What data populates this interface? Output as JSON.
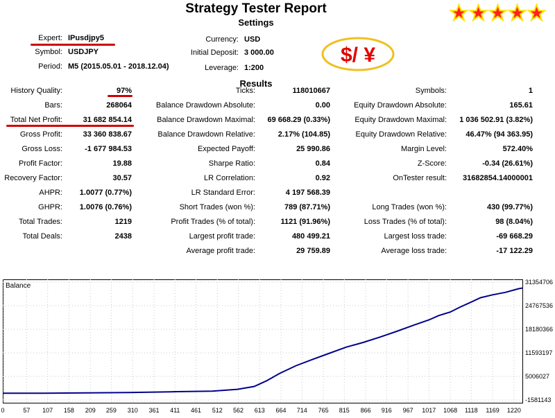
{
  "title": "Strategy Tester Report",
  "settings_title": "Settings",
  "results_title": "Results",
  "rating_stars": 5,
  "currency_logo": "$/ ¥",
  "settings": {
    "expert_label": "Expert:",
    "expert_value": "IPusdjpy5",
    "symbol_label": "Symbol:",
    "symbol_value": "USDJPY",
    "period_label": "Period:",
    "period_value": "M5 (2015.05.01 - 2018.12.04)",
    "currency_label": "Currency:",
    "currency_value": "USD",
    "deposit_label": "Initial Deposit:",
    "deposit_value": "3 000.00",
    "leverage_label": "Leverage:",
    "leverage_value": "1:200"
  },
  "results": {
    "col1": [
      {
        "label": "History Quality:",
        "value": "97%"
      },
      {
        "label": "Bars:",
        "value": "268064"
      },
      {
        "label": "Total Net Profit:",
        "value": "31 682 854.14"
      },
      {
        "label": "Gross Profit:",
        "value": "33 360 838.67"
      },
      {
        "label": "Gross Loss:",
        "value": "-1 677 984.53"
      },
      {
        "label": "Profit Factor:",
        "value": "19.88"
      },
      {
        "label": "Recovery Factor:",
        "value": "30.57"
      },
      {
        "label": "AHPR:",
        "value": "1.0077 (0.77%)"
      },
      {
        "label": "GHPR:",
        "value": "1.0076 (0.76%)"
      },
      {
        "label": "Total Trades:",
        "value": "1219"
      },
      {
        "label": "Total Deals:",
        "value": "2438"
      }
    ],
    "col2": [
      {
        "label": "Ticks:",
        "value": "118010667"
      },
      {
        "label": "Balance Drawdown Absolute:",
        "value": "0.00"
      },
      {
        "label": "Balance Drawdown Maximal:",
        "value": "69 668.29 (0.33%)"
      },
      {
        "label": "Balance Drawdown Relative:",
        "value": "2.17% (104.85)"
      },
      {
        "label": "Expected Payoff:",
        "value": "25 990.86"
      },
      {
        "label": "Sharpe Ratio:",
        "value": "0.84"
      },
      {
        "label": "LR Correlation:",
        "value": "0.92"
      },
      {
        "label": "LR Standard Error:",
        "value": "4 197 568.39"
      },
      {
        "label": "Short Trades (won %):",
        "value": "789 (87.71%)"
      },
      {
        "label": "Profit Trades (% of total):",
        "value": "1121 (91.96%)"
      },
      {
        "label": "Largest profit trade:",
        "value": "480 499.21"
      },
      {
        "label": "Average profit trade:",
        "value": "29 759.89"
      }
    ],
    "col3": [
      {
        "label": "Symbols:",
        "value": "1"
      },
      {
        "label": "Equity Drawdown Absolute:",
        "value": "165.61"
      },
      {
        "label": "Equity Drawdown Maximal:",
        "value": "1 036 502.91 (3.82%)"
      },
      {
        "label": "Equity Drawdown Relative:",
        "value": "46.47% (94 363.95)"
      },
      {
        "label": "Margin Level:",
        "value": "572.40%"
      },
      {
        "label": "Z-Score:",
        "value": "-0.34 (26.61%)"
      },
      {
        "label": "OnTester result:",
        "value": "31682854.14000001"
      },
      {
        "label": "",
        "value": ""
      },
      {
        "label": "Long Trades (won %):",
        "value": "430 (99.77%)"
      },
      {
        "label": "Loss Trades (% of total):",
        "value": "98 (8.04%)"
      },
      {
        "label": "Largest loss trade:",
        "value": "-69 668.29"
      },
      {
        "label": "Average loss trade:",
        "value": "-17 122.29"
      }
    ]
  },
  "colors": {
    "accent_red": "#d00000",
    "balance_line": "#00008b",
    "star_fill": "#ff2020",
    "star_bg": "#ffe000",
    "logo_ring": "#f0c020"
  },
  "chart_data": {
    "type": "line",
    "title": "Balance",
    "x_ticks": [
      "0",
      "57",
      "107",
      "158",
      "209",
      "259",
      "310",
      "361",
      "411",
      "461",
      "512",
      "562",
      "613",
      "664",
      "714",
      "765",
      "815",
      "866",
      "916",
      "967",
      "1017",
      "1068",
      "1118",
      "1169",
      "1220"
    ],
    "y_ticks": [
      "31354706",
      "24767536",
      "18180366",
      "11593197",
      "5006027",
      "-1581143"
    ],
    "xlim": [
      0,
      1240
    ],
    "ylim": [
      -1581143,
      31354706
    ],
    "series": [
      {
        "values_x": [
          0,
          100,
          200,
          300,
          400,
          500,
          560,
          600,
          630,
          660,
          700,
          740,
          780,
          820,
          860,
          900,
          940,
          980,
          1017,
          1040,
          1068,
          1090,
          1118,
          1140,
          1169,
          1200,
          1230,
          1240
        ],
        "values_y": [
          300000,
          300000,
          400000,
          500000,
          700000,
          900000,
          1400000,
          2200000,
          3800000,
          5800000,
          8000000,
          9800000,
          11500000,
          13200000,
          14500000,
          16000000,
          17600000,
          19300000,
          20800000,
          22000000,
          23000000,
          24300000,
          25800000,
          27000000,
          27800000,
          28500000,
          29500000,
          29700000
        ]
      }
    ]
  }
}
